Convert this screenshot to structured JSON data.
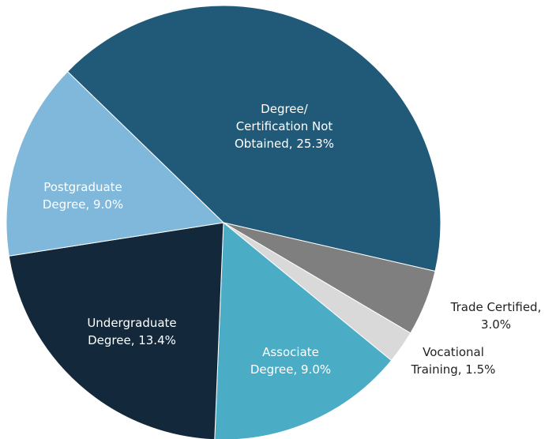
{
  "chart_data": {
    "type": "pie",
    "categories": [
      "Degree/Certification Not Obtained",
      "Trade Certified",
      "Vocational Training",
      "Associate Degree",
      "Undergraduate Degree",
      "Postgraduate Degree"
    ],
    "values": [
      25.3,
      3.0,
      1.5,
      9.0,
      13.4,
      9.0
    ],
    "value_labels": [
      "Degree/ Certification Not Obtained, 25.3%",
      "Trade Certified, 3.0%",
      "Vocational Training, 1.5%",
      "Associate Degree, 9.0%",
      "Undergraduate Degree, 13.4%",
      "Postgraduate Degree, 9.0%"
    ],
    "colors": [
      "#215a78",
      "#7f7f7f",
      "#d9d9d9",
      "#4bacc6",
      "#13283a",
      "#7fb8db"
    ]
  }
}
